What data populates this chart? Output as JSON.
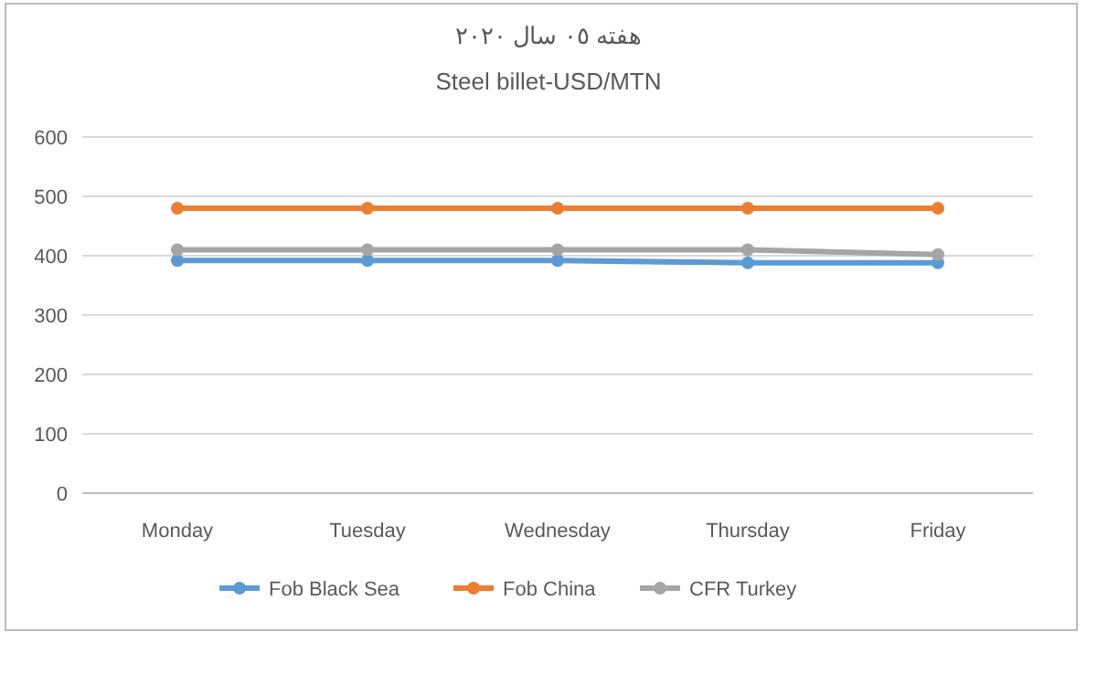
{
  "chart_data": {
    "type": "line",
    "title": "هفته ٠٥ سال ٢٠٢٠",
    "subtitle": "Steel billet-USD/MTN",
    "categories": [
      "Monday",
      "Tuesday",
      "Wednesday",
      "Thursday",
      "Friday"
    ],
    "series": [
      {
        "name": "Fob Black Sea",
        "color": "#5b9bd5",
        "values": [
          392,
          392,
          392,
          388,
          388
        ]
      },
      {
        "name": "Fob China",
        "color": "#ed7d31",
        "values": [
          480,
          480,
          480,
          480,
          480
        ]
      },
      {
        "name": "CFR Turkey",
        "color": "#a5a5a5",
        "values": [
          410,
          410,
          410,
          410,
          402
        ]
      }
    ],
    "ylim": [
      0,
      600
    ],
    "yticks": [
      0,
      100,
      200,
      300,
      400,
      500,
      600
    ],
    "grid": "y",
    "legend": "bottom",
    "marker": "circle",
    "line_style": "solid"
  }
}
